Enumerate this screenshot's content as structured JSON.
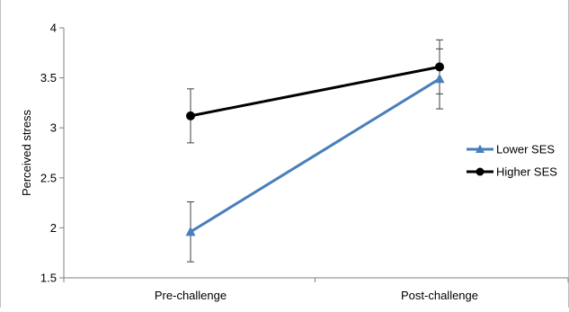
{
  "chart_data": {
    "type": "line",
    "title": "",
    "xlabel": "",
    "ylabel": "Perceived stress",
    "categories": [
      "Pre-challenge",
      "Post-challenge"
    ],
    "ylim": [
      1.5,
      4
    ],
    "yticks": [
      1.5,
      2,
      2.5,
      3,
      3.5,
      4
    ],
    "ytick_labels": [
      "1.5",
      "2",
      "2.5",
      "3",
      "3.5",
      "4"
    ],
    "grid": false,
    "legend_position": "right",
    "series": [
      {
        "name": "Lower SES",
        "values": [
          1.96,
          3.49
        ],
        "error": [
          0.3,
          0.3
        ],
        "color": "#4a7ebb",
        "marker": "triangle"
      },
      {
        "name": "Higher SES",
        "values": [
          3.12,
          3.61
        ],
        "error": [
          0.27,
          0.27
        ],
        "color": "#000000",
        "marker": "circle"
      }
    ]
  }
}
